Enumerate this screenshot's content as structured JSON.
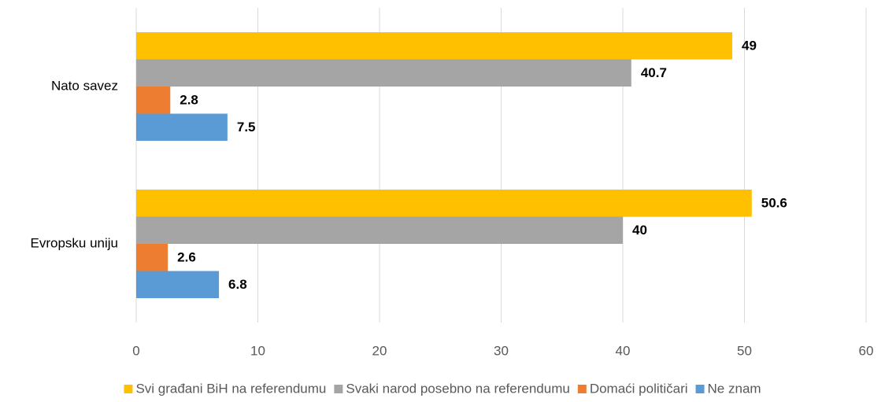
{
  "chart_data": {
    "type": "hbar",
    "categories": [
      "Nato savez",
      "Evropsku uniju"
    ],
    "series": [
      {
        "name": "Svi građani BiH na referendumu",
        "color": "#FFC000",
        "values": [
          49,
          50.6
        ]
      },
      {
        "name": "Svaki narod posebno na referendumu",
        "color": "#A5A5A5",
        "values": [
          40.7,
          40
        ]
      },
      {
        "name": "Domaći političari",
        "color": "#ED7D31",
        "values": [
          2.8,
          2.6
        ]
      },
      {
        "name": "Ne znam",
        "color": "#5B9BD5",
        "values": [
          7.5,
          6.8
        ]
      }
    ],
    "xlim": [
      0,
      60
    ],
    "xticks": [
      0,
      10,
      20,
      30,
      40,
      50,
      60
    ],
    "grid": true,
    "legend": "bottom"
  }
}
